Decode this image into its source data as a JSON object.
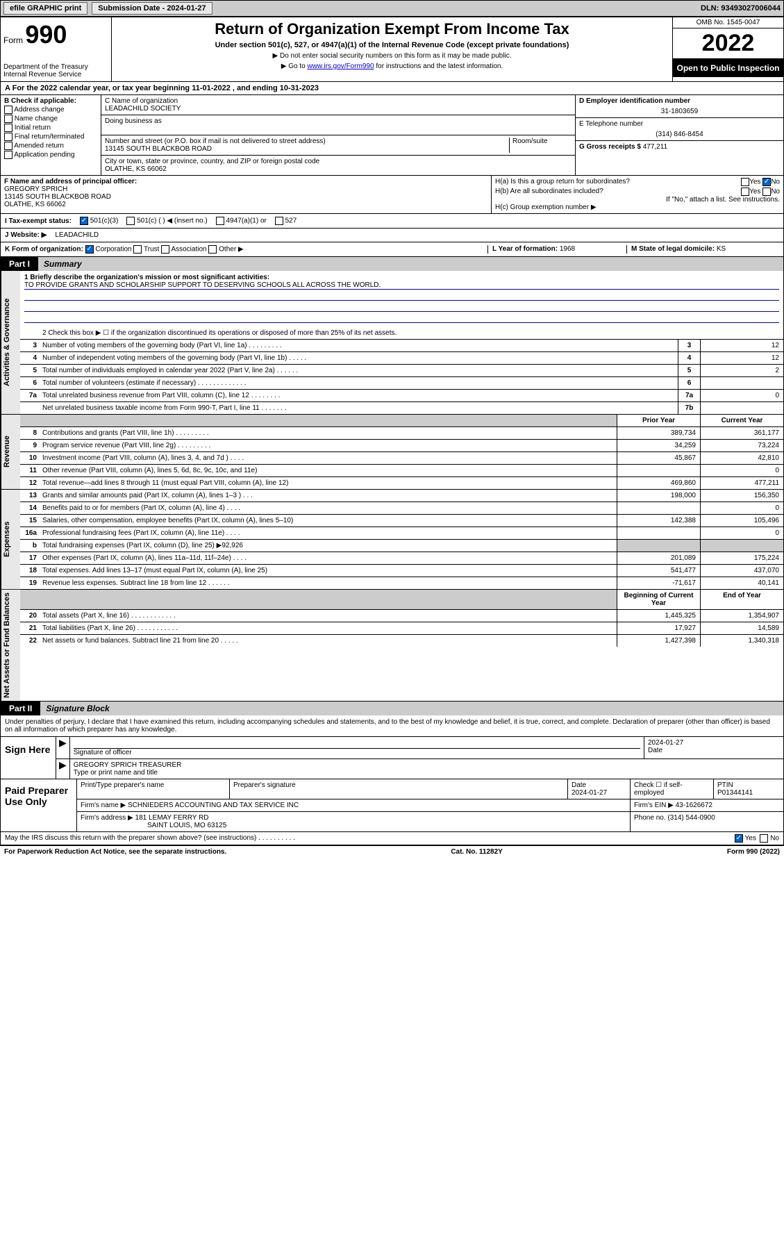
{
  "top": {
    "efile": "efile GRAPHIC print",
    "submission_label": "Submission Date - 2024-01-27",
    "dln": "DLN: 93493027006044"
  },
  "header": {
    "form_prefix": "Form",
    "form_number": "990",
    "dept": "Department of the Treasury",
    "irs": "Internal Revenue Service",
    "title": "Return of Organization Exempt From Income Tax",
    "subtitle": "Under section 501(c), 527, or 4947(a)(1) of the Internal Revenue Code (except private foundations)",
    "note1": "▶ Do not enter social security numbers on this form as it may be made public.",
    "note2_pre": "▶ Go to ",
    "note2_link": "www.irs.gov/Form990",
    "note2_post": " for instructions and the latest information.",
    "omb": "OMB No. 1545-0047",
    "year": "2022",
    "inspection": "Open to Public Inspection"
  },
  "period": "For the 2022 calendar year, or tax year beginning 11-01-2022   , and ending 10-31-2023",
  "section_b": {
    "title": "B Check if applicable:",
    "opts": [
      "Address change",
      "Name change",
      "Initial return",
      "Final return/terminated",
      "Amended return",
      "Application pending"
    ]
  },
  "section_c": {
    "name_label": "C Name of organization",
    "name": "LEADACHILD SOCIETY",
    "dba_label": "Doing business as",
    "addr_label": "Number and street (or P.O. box if mail is not delivered to street address)",
    "room_label": "Room/suite",
    "addr": "13145 SOUTH BLACKBOB ROAD",
    "city_label": "City or town, state or province, country, and ZIP or foreign postal code",
    "city": "OLATHE, KS  66062"
  },
  "section_d": {
    "ein_label": "D Employer identification number",
    "ein": "31-1803659",
    "phone_label": "E Telephone number",
    "phone": "(314) 846-8454",
    "gross_label": "G Gross receipts $",
    "gross": "477,211"
  },
  "section_f": {
    "label": "F Name and address of principal officer:",
    "name": "GREGORY SPRICH",
    "addr": "13145 SOUTH BLACKBOB ROAD",
    "city": "OLATHE, KS  66062"
  },
  "section_h": {
    "a_label": "H(a)  Is this a group return for subordinates?",
    "a_yes": "Yes",
    "a_no": "No",
    "b_label": "H(b)  Are all subordinates included?",
    "b_yes": "Yes",
    "b_no": "No",
    "b_note": "If \"No,\" attach a list. See instructions.",
    "c_label": "H(c)  Group exemption number ▶"
  },
  "status": {
    "i_label": "I    Tax-exempt status:",
    "s1": "501(c)(3)",
    "s2": "501(c) (  ) ◀ (insert no.)",
    "s3": "4947(a)(1) or",
    "s4": "527"
  },
  "website": {
    "label": "J    Website: ▶",
    "value": "LEADACHILD"
  },
  "korg": {
    "label": "K Form of organization:",
    "opts": [
      "Corporation",
      "Trust",
      "Association",
      "Other ▶"
    ],
    "l_label": "L Year of formation:",
    "l_val": "1968",
    "m_label": "M State of legal domicile:",
    "m_val": "KS"
  },
  "part1": {
    "num": "Part I",
    "title": "Summary",
    "line1_label": "1   Briefly describe the organization's mission or most significant activities:",
    "mission": "TO PROVIDE GRANTS AND SCHOLARSHIP SUPPORT TO DESERVING SCHOOLS ALL ACROSS THE WORLD.",
    "line2": "2    Check this box ▶ ☐  if the organization discontinued its operations or disposed of more than 25% of its net assets.",
    "sidebar_gov": "Activities & Governance",
    "sidebar_rev": "Revenue",
    "sidebar_exp": "Expenses",
    "sidebar_net": "Net Assets or Fund Balances",
    "prior": "Prior Year",
    "current": "Current Year",
    "begin": "Beginning of Current Year",
    "end": "End of Year",
    "gov_lines": [
      {
        "n": "3",
        "d": "Number of voting members of the governing body (Part VI, line 1a)   .   .   .   .   .   .   .   .   .",
        "b": "3",
        "v": "12"
      },
      {
        "n": "4",
        "d": "Number of independent voting members of the governing body (Part VI, line 1b)  .   .   .   .   .",
        "b": "4",
        "v": "12"
      },
      {
        "n": "5",
        "d": "Total number of individuals employed in calendar year 2022 (Part V, line 2a)   .   .   .   .   .   .",
        "b": "5",
        "v": "2"
      },
      {
        "n": "6",
        "d": "Total number of volunteers (estimate if necessary)  .   .   .   .   .   .   .   .   .   .   .   .   .",
        "b": "6",
        "v": ""
      },
      {
        "n": "7a",
        "d": "Total unrelated business revenue from Part VIII, column (C), line 12   .   .   .   .   .   .   .   .",
        "b": "7a",
        "v": "0"
      },
      {
        "n": "",
        "d": "Net unrelated business taxable income from Form 990-T, Part I, line 11   .   .   .   .   .   .   .",
        "b": "7b",
        "v": ""
      }
    ],
    "rev_lines": [
      {
        "n": "8",
        "d": "Contributions and grants (Part VIII, line 1h)   .   .   .   .   .   .   .   .   .",
        "p": "389,734",
        "c": "361,177"
      },
      {
        "n": "9",
        "d": "Program service revenue (Part VIII, line 2g)   .   .   .   .   .   .   .   .   .",
        "p": "34,259",
        "c": "73,224"
      },
      {
        "n": "10",
        "d": "Investment income (Part VIII, column (A), lines 3, 4, and 7d )   .   .   .   .",
        "p": "45,867",
        "c": "42,810"
      },
      {
        "n": "11",
        "d": "Other revenue (Part VIII, column (A), lines 5, 6d, 8c, 9c, 10c, and 11e)",
        "p": "",
        "c": "0"
      },
      {
        "n": "12",
        "d": "Total revenue—add lines 8 through 11 (must equal Part VIII, column (A), line 12)",
        "p": "469,860",
        "c": "477,211"
      }
    ],
    "exp_lines": [
      {
        "n": "13",
        "d": "Grants and similar amounts paid (Part IX, column (A), lines 1–3 )   .   .   .",
        "p": "198,000",
        "c": "156,350"
      },
      {
        "n": "14",
        "d": "Benefits paid to or for members (Part IX, column (A), line 4)   .   .   .   .",
        "p": "",
        "c": "0"
      },
      {
        "n": "15",
        "d": "Salaries, other compensation, employee benefits (Part IX, column (A), lines 5–10)",
        "p": "142,388",
        "c": "105,496"
      },
      {
        "n": "16a",
        "d": "Professional fundraising fees (Part IX, column (A), line 11e)   .   .   .   .",
        "p": "",
        "c": "0"
      },
      {
        "n": "b",
        "d": "Total fundraising expenses (Part IX, column (D), line 25) ▶92,926",
        "p": "GRAY",
        "c": "GRAY"
      },
      {
        "n": "17",
        "d": "Other expenses (Part IX, column (A), lines 11a–11d, 11f–24e)   .   .   .   .",
        "p": "201,089",
        "c": "175,224"
      },
      {
        "n": "18",
        "d": "Total expenses. Add lines 13–17 (must equal Part IX, column (A), line 25)",
        "p": "541,477",
        "c": "437,070"
      },
      {
        "n": "19",
        "d": "Revenue less expenses. Subtract line 18 from line 12   .   .   .   .   .   .",
        "p": "-71,617",
        "c": "40,141"
      }
    ],
    "net_lines": [
      {
        "n": "20",
        "d": "Total assets (Part X, line 16)   .   .   .   .   .   .   .   .   .   .   .   .",
        "p": "1,445,325",
        "c": "1,354,907"
      },
      {
        "n": "21",
        "d": "Total liabilities (Part X, line 26)   .   .   .   .   .   .   .   .   .   .   .",
        "p": "17,927",
        "c": "14,589"
      },
      {
        "n": "22",
        "d": "Net assets or fund balances. Subtract line 21 from line 20   .   .   .   .   .",
        "p": "1,427,398",
        "c": "1,340,318"
      }
    ]
  },
  "part2": {
    "num": "Part II",
    "title": "Signature Block",
    "penalty": "Under penalties of perjury, I declare that I have examined this return, including accompanying schedules and statements, and to the best of my knowledge and belief, it is true, correct, and complete. Declaration of preparer (other than officer) is based on all information of which preparer has any knowledge.",
    "sign_here": "Sign Here",
    "sig_officer": "Signature of officer",
    "date_label": "Date",
    "date": "2024-01-27",
    "officer_name": "GREGORY SPRICH  TREASURER",
    "name_label": "Type or print name and title"
  },
  "preparer": {
    "label": "Paid Preparer Use Only",
    "h1": "Print/Type preparer's name",
    "h2": "Preparer's signature",
    "h3": "Date",
    "date": "2024-01-27",
    "h4": "Check ☐ if self-employed",
    "h5": "PTIN",
    "ptin": "P01344141",
    "firm_name_l": "Firm's name    ▶",
    "firm_name": "SCHNIEDERS ACCOUNTING AND TAX SERVICE INC",
    "firm_ein_l": "Firm's EIN ▶",
    "firm_ein": "43-1626672",
    "firm_addr_l": "Firm's address ▶",
    "firm_addr": "181 LEMAY FERRY RD",
    "firm_city": "SAINT LOUIS, MO  63125",
    "phone_l": "Phone no.",
    "phone": "(314) 544-0900"
  },
  "discuss": {
    "text": "May the IRS discuss this return with the preparer shown above? (see instructions)   .   .   .   .   .   .   .   .   .   .",
    "yes": "Yes",
    "no": "No"
  },
  "footer": {
    "left": "For Paperwork Reduction Act Notice, see the separate instructions.",
    "mid": "Cat. No. 11282Y",
    "right": "Form 990 (2022)"
  }
}
